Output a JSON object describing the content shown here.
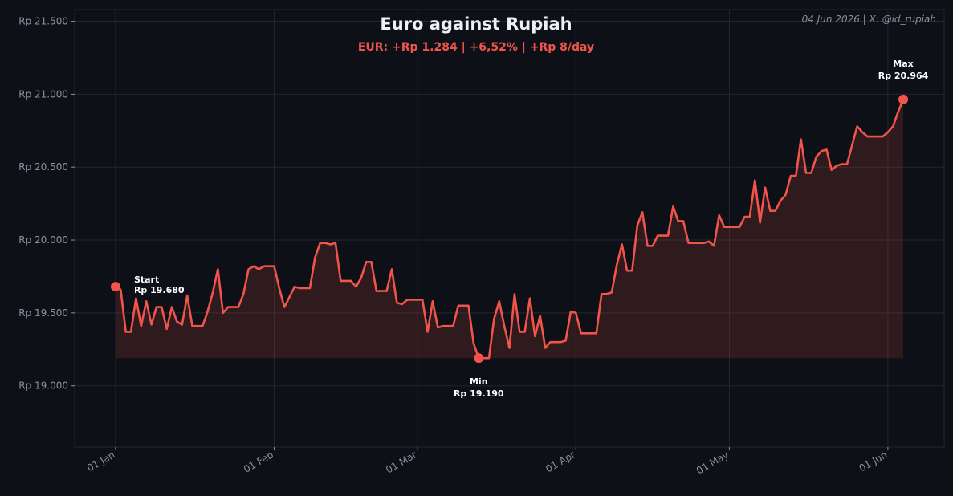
{
  "chart_data": {
    "type": "line",
    "title": "Euro against Rupiah",
    "subtitle": "EUR: +Rp 1.284 | +6,52% | +Rp 8/day",
    "credit": "04 Jun 2026 | X: @id_rupiah",
    "xlabel": "",
    "ylabel": "",
    "x_ticks": [
      {
        "day": 0,
        "label": "01 Jan"
      },
      {
        "day": 31,
        "label": "01 Feb"
      },
      {
        "day": 59,
        "label": "01 Mar"
      },
      {
        "day": 90,
        "label": "01 Apr"
      },
      {
        "day": 120,
        "label": "01 May"
      },
      {
        "day": 151,
        "label": "01 Jun"
      }
    ],
    "y_ticks": [
      {
        "value": 19000,
        "label": "Rp 19.000"
      },
      {
        "value": 19500,
        "label": "Rp 19.500"
      },
      {
        "value": 20000,
        "label": "Rp 20.000"
      },
      {
        "value": 20500,
        "label": "Rp 20.500"
      },
      {
        "value": 21000,
        "label": "Rp 21.000"
      },
      {
        "value": 21500,
        "label": "Rp 21.500"
      }
    ],
    "ylim": [
      18580,
      21580
    ],
    "xlim": [
      -8,
      162
    ],
    "grid": true,
    "colors": {
      "line": "#f0544a",
      "grid": "#22262e",
      "background": "#0d1017"
    },
    "series": [
      {
        "x": [
          0,
          1,
          2,
          3,
          4,
          5,
          6,
          7,
          8,
          9,
          10,
          11,
          12,
          13,
          14,
          15,
          16,
          17,
          18,
          19,
          20,
          21,
          22,
          23,
          24,
          25,
          26,
          27,
          28,
          29,
          30,
          31,
          32,
          33,
          34,
          35,
          36,
          37,
          38,
          39,
          40,
          41,
          42,
          43,
          44,
          45,
          46,
          47,
          48,
          49,
          50,
          51,
          52,
          53,
          54,
          55,
          56,
          57,
          58,
          59,
          60,
          61,
          62,
          63,
          64,
          65,
          66,
          67,
          68,
          69,
          70,
          71,
          72,
          73,
          74,
          75,
          76,
          77,
          78,
          79,
          80,
          81,
          82,
          83,
          84,
          85,
          86,
          87,
          88,
          89,
          90,
          91,
          92,
          93,
          94,
          95,
          96,
          97,
          98,
          99,
          100,
          101,
          102,
          103,
          104,
          105,
          106,
          107,
          108,
          109,
          110,
          111,
          112,
          113,
          114,
          115,
          116,
          117,
          118,
          119,
          120,
          121,
          122,
          123,
          124,
          125,
          126,
          127,
          128,
          129,
          130,
          131,
          132,
          133,
          134,
          135,
          136,
          137,
          138,
          139,
          140,
          141,
          142,
          143,
          144,
          145,
          146,
          147,
          148,
          149,
          150,
          151,
          152,
          153,
          154
        ],
        "y": [
          19680,
          19660,
          19370,
          19370,
          19600,
          19410,
          19580,
          19420,
          19540,
          19540,
          19390,
          19540,
          19440,
          19420,
          19620,
          19410,
          19410,
          19410,
          19510,
          19640,
          19800,
          19500,
          19540,
          19540,
          19540,
          19630,
          19800,
          19820,
          19800,
          19820,
          19820,
          19820,
          19670,
          19540,
          19610,
          19680,
          19670,
          19670,
          19670,
          19880,
          19980,
          19980,
          19970,
          19980,
          19720,
          19720,
          19720,
          19680,
          19740,
          19850,
          19850,
          19650,
          19650,
          19650,
          19800,
          19570,
          19560,
          19590,
          19590,
          19590,
          19590,
          19370,
          19580,
          19400,
          19410,
          19410,
          19410,
          19550,
          19550,
          19550,
          19290,
          19190,
          19190,
          19190,
          19460,
          19580,
          19410,
          19260,
          19630,
          19370,
          19370,
          19600,
          19340,
          19480,
          19260,
          19300,
          19300,
          19300,
          19310,
          19510,
          19500,
          19360,
          19360,
          19360,
          19360,
          19630,
          19630,
          19640,
          19830,
          19970,
          19790,
          19790,
          20100,
          20190,
          19960,
          19960,
          20030,
          20030,
          20030,
          20230,
          20130,
          20130,
          19980,
          19980,
          19980,
          19980,
          19990,
          19960,
          20170,
          20090,
          20090,
          20090,
          20090,
          20160,
          20160,
          20410,
          20120,
          20360,
          20200,
          20200,
          20270,
          20310,
          20440,
          20440,
          20690,
          20460,
          20460,
          20570,
          20610,
          20620,
          20480,
          20510,
          20520,
          20520,
          20650,
          20780,
          20740,
          20710,
          20710,
          20710,
          20710,
          20740,
          20780,
          20880,
          20964
        ]
      }
    ],
    "annotations": [
      {
        "label": "Start",
        "value_label": "Rp 19.680",
        "x": 0,
        "y": 19680
      },
      {
        "label": "Min",
        "value_label": "Rp 19.190",
        "x": 71,
        "y": 19190
      },
      {
        "label": "Max",
        "value_label": "Rp 20.964",
        "x": 154,
        "y": 20964
      }
    ]
  }
}
